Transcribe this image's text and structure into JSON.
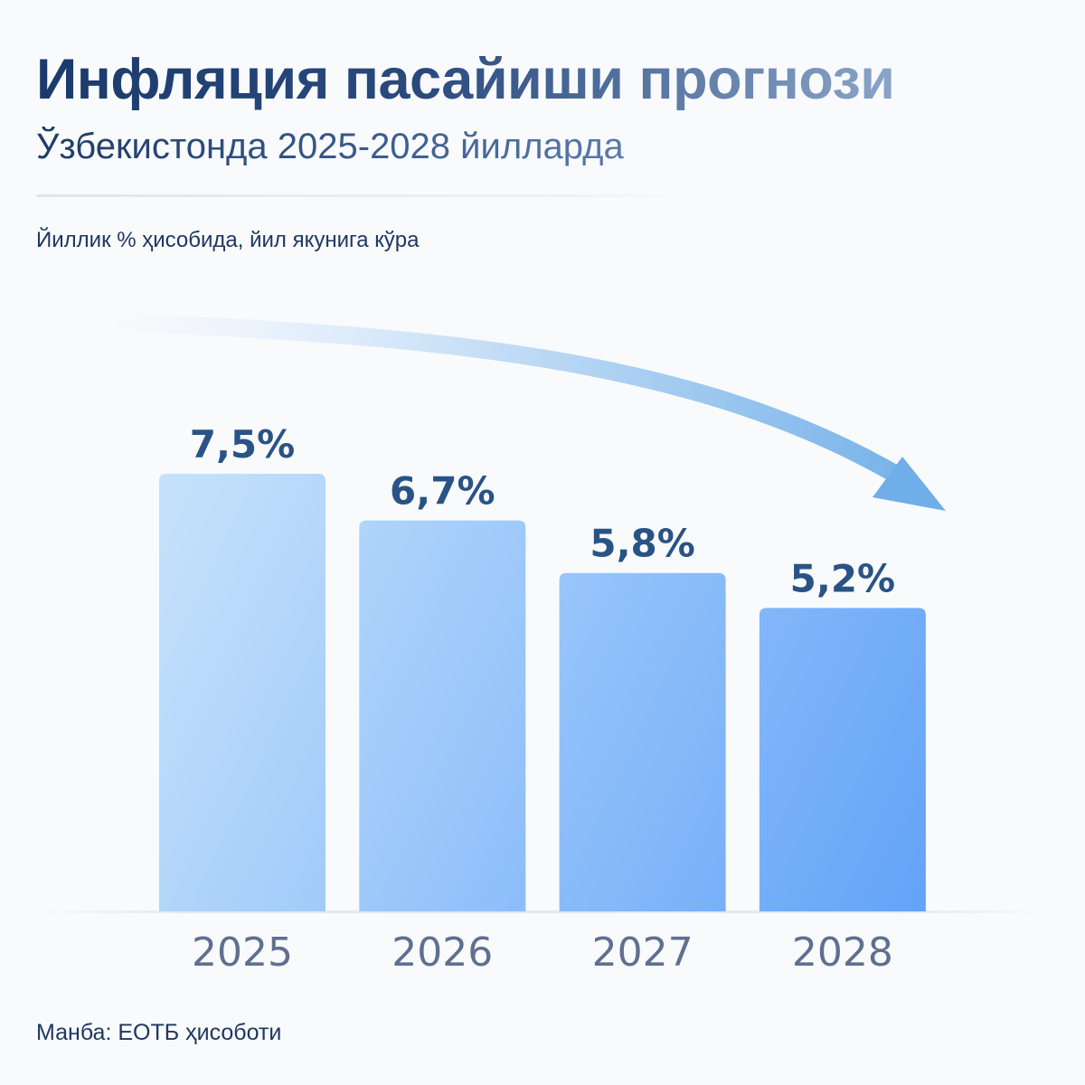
{
  "header": {
    "title": "Инфляция пасайиши прогнози",
    "subtitle": "Ўзбекистонда 2025-2028 йилларда",
    "unit_note": "Йиллик % ҳисобида, йил якунига кўра"
  },
  "chart_data": {
    "type": "bar",
    "categories": [
      "2025",
      "2026",
      "2027",
      "2028"
    ],
    "values": [
      7.5,
      6.7,
      5.8,
      5.2
    ],
    "data_labels": [
      "7,5%",
      "6,7%",
      "5,8%",
      "5,2%"
    ],
    "title": "Инфляция пасайиши прогнози",
    "ylim": [
      0,
      7.5
    ],
    "grid": false,
    "annotation": "downward-trend-arrow",
    "colors": {
      "bar_start": "#c4e1fb",
      "bar_end": "#63a3f8",
      "label": "#2a5385",
      "tick": "#5e7090"
    }
  },
  "footer": {
    "source": "Манба: ЕОТБ ҳисоботи"
  }
}
